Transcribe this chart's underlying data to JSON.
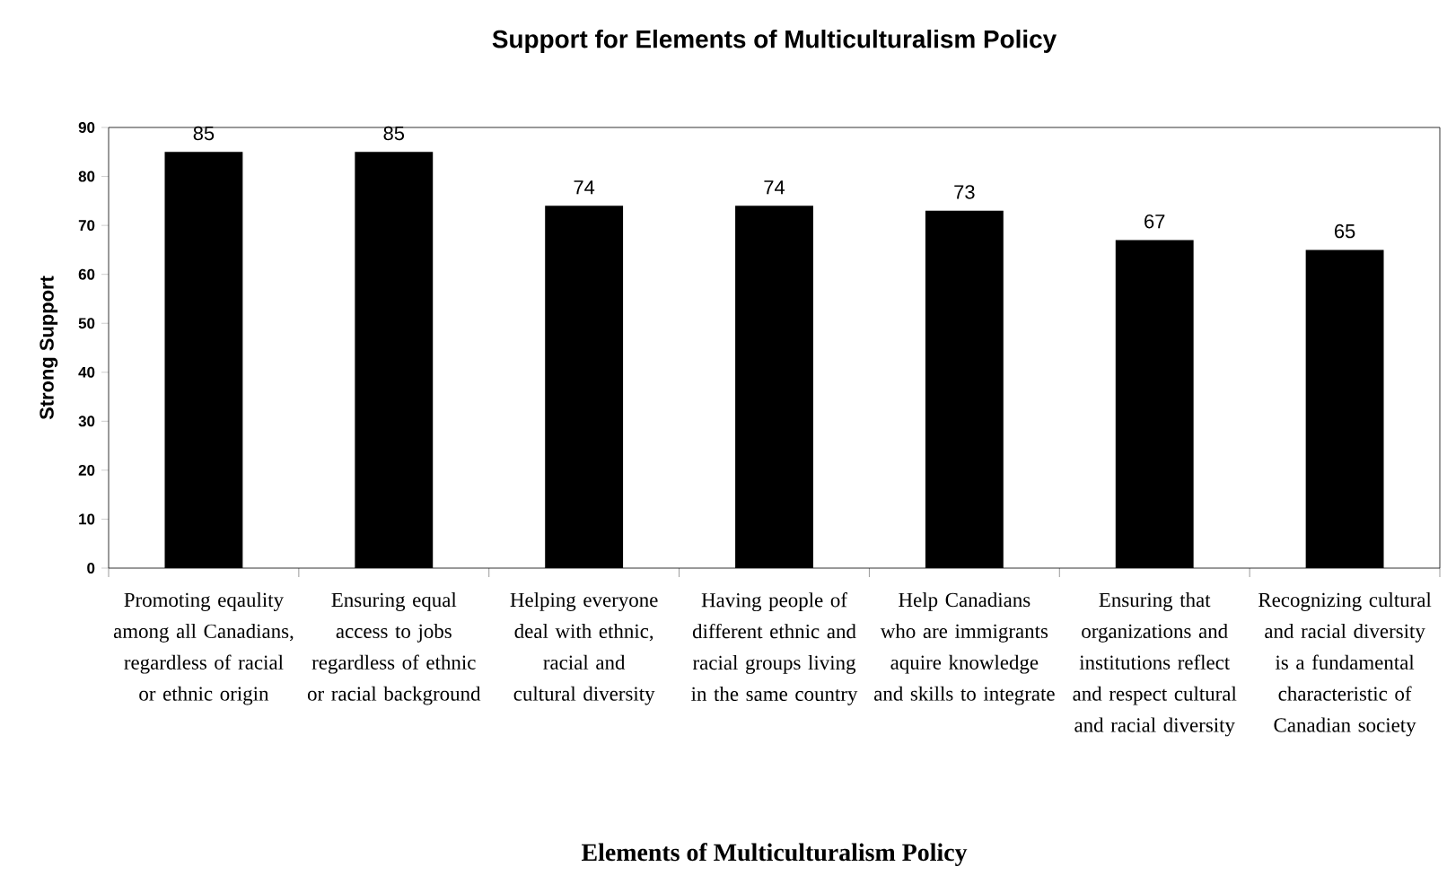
{
  "chart_data": {
    "type": "bar",
    "title": "Support for Elements of Multiculturalism Policy",
    "xlabel": "Elements of Multiculturalism Policy",
    "ylabel": "Strong Support",
    "categories": [
      "Promoting eqaulity among all Canadians, regardless of racial or ethnic origin",
      "Ensuring equal access to jobs regardless of ethnic or racial background",
      "Helping everyone deal with ethnic, racial and cultural diversity",
      "Having people of different ethnic and racial groups living in the same country",
      "Help Canadians who are immigrants aquire knowledge and skills to integrate",
      "Ensuring that organizations and institutions reflect and respect cultural and racial diversity",
      "Recognizing cultural and racial diversity is a fundamental characteristic of Canadian society"
    ],
    "values": [
      85,
      85,
      74,
      74,
      73,
      67,
      65
    ],
    "color": "#000000",
    "ylim": [
      0,
      90
    ],
    "yticks": [
      0,
      10,
      20,
      30,
      40,
      50,
      60,
      70,
      80,
      90
    ],
    "data_labels": true
  }
}
